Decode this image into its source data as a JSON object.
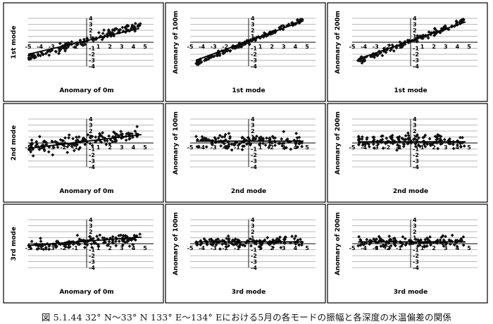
{
  "caption": "図 5.1.44  32° N～33° N 133° E～134° Eにおける5月の各モードの振幅と各深度の水温偏差の関係",
  "chart_data": [
    {
      "type": "scatter",
      "title": "",
      "xlabel": "Anomary of 0m",
      "ylabel": "1st mode",
      "xlim": [
        -5,
        5
      ],
      "ylim": [
        -4,
        4
      ],
      "grid": true,
      "x_ticks": [
        "-5",
        "-4",
        "-3",
        "-2",
        "-1",
        "1",
        "2",
        "3",
        "4",
        "5"
      ],
      "y_ticks": [
        "4",
        "3",
        "2",
        "1",
        "-1",
        "-2",
        "-3",
        "-4"
      ],
      "spread": 0.6,
      "slope": 0.6,
      "intercept": 0.3,
      "trendline": {
        "x": [
          -5,
          4.5
        ],
        "y": [
          -2.0,
          2.3
        ]
      },
      "x_range": [
        -5,
        4.6
      ],
      "n": 150
    },
    {
      "type": "scatter",
      "title": "",
      "xlabel": "1st mode",
      "ylabel": "Anomary of 100m",
      "xlim": [
        -5,
        5
      ],
      "ylim": [
        -4,
        4
      ],
      "grid": true,
      "x_ticks": [
        "-5",
        "-4",
        "-3",
        "-2",
        "-1",
        "1",
        "2",
        "3",
        "4",
        "5"
      ],
      "y_ticks": [
        "4",
        "3",
        "2",
        "1",
        "-1",
        "-2",
        "-3",
        "-4"
      ],
      "spread": 0.35,
      "slope": 0.8,
      "intercept": 0.1,
      "trendline": {
        "x": [
          -4.5,
          4.7
        ],
        "y": [
          -3.0,
          3.6
        ]
      },
      "x_range": [
        -4.5,
        4.6
      ],
      "n": 150
    },
    {
      "type": "scatter",
      "title": "",
      "xlabel": "1st mode",
      "ylabel": "Anomary of 200m",
      "xlim": [
        -5,
        5
      ],
      "ylim": [
        -4,
        4
      ],
      "grid": true,
      "x_ticks": [
        "-5",
        "-4",
        "-3",
        "-2",
        "-1",
        "1",
        "2",
        "3",
        "4",
        "5"
      ],
      "y_ticks": [
        "4",
        "3",
        "2",
        "1",
        "-1",
        "-2",
        "-3",
        "-4"
      ],
      "spread": 0.5,
      "slope": 0.75,
      "intercept": 0.2,
      "trendline": {
        "x": [
          -4.5,
          4.7
        ],
        "y": [
          -2.8,
          3.4
        ]
      },
      "x_range": [
        -4.5,
        4.6
      ],
      "n": 150
    },
    {
      "type": "scatter",
      "title": "",
      "xlabel": "Anomary of 0m",
      "ylabel": "2nd mode",
      "xlim": [
        -5,
        5
      ],
      "ylim": [
        -4,
        4
      ],
      "grid": true,
      "x_ticks": [
        "-5",
        "-4",
        "-3",
        "-2",
        "-1",
        "1",
        "2",
        "3",
        "4",
        "5"
      ],
      "y_ticks": [
        "4",
        "3",
        "2",
        "1",
        "-1",
        "-2",
        "-3",
        "-4"
      ],
      "spread": 1.0,
      "slope": 0.25,
      "intercept": 0.3,
      "trendline": {
        "x": [
          -5,
          4.7
        ],
        "y": [
          -0.9,
          1.4
        ]
      },
      "x_range": [
        -5,
        4.6
      ],
      "n": 150
    },
    {
      "type": "scatter",
      "title": "",
      "xlabel": "2nd mode",
      "ylabel": "Anomary of 100m",
      "xlim": [
        -5,
        5
      ],
      "ylim": [
        -4,
        4
      ],
      "grid": true,
      "x_ticks": [
        "-5",
        "-4",
        "-3",
        "-2",
        "-1",
        "1",
        "2",
        "3",
        "4",
        "5"
      ],
      "y_ticks": [
        "4",
        "3",
        "2",
        "1",
        "-1",
        "-2",
        "-3",
        "-4"
      ],
      "spread": 1.1,
      "slope": 0,
      "intercept": 0.3,
      "trendline": {
        "x": [
          -4.5,
          4.7
        ],
        "y": [
          0.3,
          0.3
        ]
      },
      "x_range": [
        -4.5,
        4.6
      ],
      "n": 140
    },
    {
      "type": "scatter",
      "title": "",
      "xlabel": "2nd mode",
      "ylabel": "Anomary of 200m",
      "xlim": [
        -5,
        5
      ],
      "ylim": [
        -4,
        4
      ],
      "grid": true,
      "x_ticks": [
        "-5",
        "-4",
        "-3",
        "-2",
        "-1",
        "1",
        "2",
        "3",
        "4",
        "5"
      ],
      "y_ticks": [
        "4",
        "3",
        "2",
        "1",
        "-1",
        "-2",
        "-3",
        "-4"
      ],
      "spread": 1.1,
      "slope": 0,
      "intercept": 0.2,
      "trendline": {
        "x": [
          -4.5,
          4.7
        ],
        "y": [
          0.2,
          0.2
        ]
      },
      "x_range": [
        -4.5,
        4.6
      ],
      "n": 140
    },
    {
      "type": "scatter",
      "title": "",
      "xlabel": "Anomary of 0m",
      "ylabel": "3rd mode",
      "xlim": [
        -5,
        5
      ],
      "ylim": [
        -4,
        4
      ],
      "grid": true,
      "x_ticks": [
        "-5",
        "-4",
        "-3",
        "-2",
        "-1",
        "1",
        "2",
        "3",
        "4",
        "5"
      ],
      "y_ticks": [
        "4",
        "3",
        "2",
        "1",
        "-1",
        "-2",
        "-3",
        "-4"
      ],
      "spread": 0.8,
      "slope": 0.15,
      "intercept": 0.2,
      "trendline": {
        "x": [
          -5,
          4.7
        ],
        "y": [
          -0.3,
          1.1
        ]
      },
      "x_range": [
        -5,
        4.6
      ],
      "n": 150
    },
    {
      "type": "scatter",
      "title": "",
      "xlabel": "3rd mode",
      "ylabel": "Anomary of 100m",
      "xlim": [
        -5,
        5
      ],
      "ylim": [
        -4,
        4
      ],
      "grid": true,
      "x_ticks": [
        "-5",
        "-4",
        "-3",
        "-2",
        "-1",
        "1",
        "2",
        "3",
        "4",
        "5"
      ],
      "y_ticks": [
        "4",
        "3",
        "2",
        "1",
        "-1",
        "-2",
        "-3",
        "-4"
      ],
      "spread": 0.7,
      "slope": 0,
      "intercept": 0.3,
      "trendline": {
        "x": [
          -4.5,
          4.7
        ],
        "y": [
          0.3,
          0.3
        ]
      },
      "x_range": [
        -4.5,
        4.6
      ],
      "n": 140
    },
    {
      "type": "scatter",
      "title": "",
      "xlabel": "3rd mode",
      "ylabel": "Anomary of 200m",
      "xlim": [
        -5,
        5
      ],
      "ylim": [
        -4,
        4
      ],
      "grid": true,
      "x_ticks": [
        "-5",
        "-4",
        "-3",
        "-2",
        "-1",
        "1",
        "2",
        "3",
        "4",
        "5"
      ],
      "y_ticks": [
        "4",
        "3",
        "2",
        "1",
        "-1",
        "-2",
        "-3",
        "-4"
      ],
      "spread": 0.75,
      "slope": 0,
      "intercept": 0.3,
      "trendline": {
        "x": [
          -4.5,
          4.7
        ],
        "y": [
          0.3,
          0.3
        ]
      },
      "x_range": [
        -4.5,
        4.6
      ],
      "n": 140
    }
  ]
}
